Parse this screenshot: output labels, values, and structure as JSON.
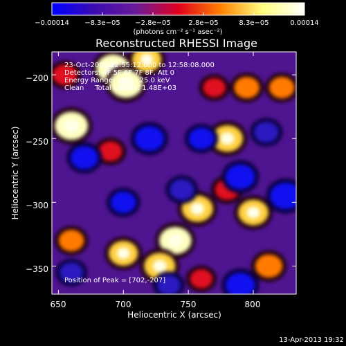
{
  "chart_data": {
    "type": "heatmap",
    "title": "Reconstructed RHESSI Image",
    "xlabel": "Heliocentric X (arcsec)",
    "ylabel": "Heliocentric Y (arcsec)",
    "xlim": [
      645,
      833
    ],
    "ylim": [
      -372,
      -182
    ],
    "x_ticks": [
      650,
      700,
      750,
      800
    ],
    "x_tick_labels": [
      "650",
      "700",
      "750",
      "800"
    ],
    "y_ticks": [
      -200,
      -250,
      -300,
      -350
    ],
    "y_tick_labels": [
      "−200",
      "−250",
      "−300",
      "−350"
    ],
    "colorbar": {
      "range": [
        -0.00014,
        0.00014
      ],
      "tick_labels": [
        "−0.00014",
        "−8.3e−05",
        "−2.8e−05",
        "2.8e−05",
        "8.3e−05",
        "0.00014"
      ],
      "unit_label": "(photons cm⁻² s⁻¹ asec⁻²)",
      "colors": [
        "#0000ff",
        "#3b0bb0",
        "#6a1b9a",
        "#e0001e",
        "#ff8000",
        "#ffff80",
        "#ffffff"
      ]
    },
    "annotations": [
      "23-Oct-2002 12:55:12.000 to 12:58:08.000",
      "Detectors: 4F 5F 6F 7F 8F, Att 0",
      "Energy Range: 12.0 - 25.0 keV",
      "Clean     Total Counts: 1.48E+03"
    ],
    "peak_label": "Position of Peak = [702,-207]",
    "peak": [
      702,
      -207
    ],
    "blobs": [
      {
        "x": 660,
        "y": -240,
        "v": 1.0
      },
      {
        "x": 692,
        "y": -195,
        "v": 1.0
      },
      {
        "x": 702,
        "y": -207,
        "v": 1.0
      },
      {
        "x": 718,
        "y": -188,
        "v": 0.8
      },
      {
        "x": 780,
        "y": -250,
        "v": 0.9
      },
      {
        "x": 800,
        "y": -308,
        "v": 0.85
      },
      {
        "x": 812,
        "y": -350,
        "v": 0.7
      },
      {
        "x": 757,
        "y": -305,
        "v": 0.9
      },
      {
        "x": 740,
        "y": -330,
        "v": 0.95
      },
      {
        "x": 728,
        "y": -350,
        "v": 0.9
      },
      {
        "x": 700,
        "y": -340,
        "v": 0.8
      },
      {
        "x": 660,
        "y": -330,
        "v": 0.6
      },
      {
        "x": 780,
        "y": -290,
        "v": 0.55
      },
      {
        "x": 822,
        "y": -210,
        "v": 0.6
      },
      {
        "x": 795,
        "y": -210,
        "v": 0.6
      },
      {
        "x": 770,
        "y": -210,
        "v": 0.45
      },
      {
        "x": 760,
        "y": -360,
        "v": 0.45
      },
      {
        "x": 690,
        "y": -260,
        "v": 0.5
      },
      {
        "x": 655,
        "y": -200,
        "v": 0.55
      },
      {
        "x": 790,
        "y": -280,
        "v": -0.8
      },
      {
        "x": 825,
        "y": -295,
        "v": -0.9
      },
      {
        "x": 670,
        "y": -265,
        "v": -0.7
      },
      {
        "x": 720,
        "y": -250,
        "v": -0.8
      },
      {
        "x": 700,
        "y": -300,
        "v": -0.6
      },
      {
        "x": 760,
        "y": -250,
        "v": -0.6
      },
      {
        "x": 790,
        "y": -365,
        "v": -0.8
      },
      {
        "x": 735,
        "y": -365,
        "v": -0.5
      },
      {
        "x": 660,
        "y": -355,
        "v": -0.5
      },
      {
        "x": 745,
        "y": -290,
        "v": -0.55
      },
      {
        "x": 810,
        "y": -245,
        "v": -0.55
      }
    ]
  },
  "footer": {
    "date": "13-Apr-2013 19:32"
  }
}
